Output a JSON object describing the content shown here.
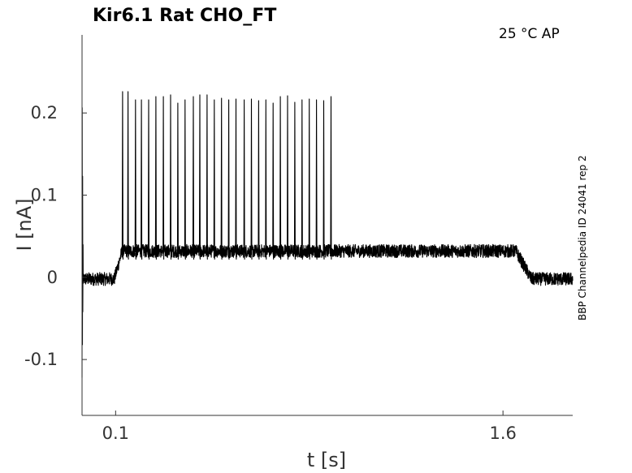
{
  "chart_data": {
    "type": "line",
    "title": "Kir6.1  Rat  CHO_FT",
    "condition": "25 °C  AP",
    "side_label": "BBP Channelpedia ID 24041 rep 2",
    "xlabel": "t [s]",
    "ylabel": "I [nA]",
    "xlim": [
      -0.03,
      1.87
    ],
    "ylim": [
      -0.168,
      0.295
    ],
    "x_ticks": [
      0.1,
      1.6
    ],
    "x_tick_labels": [
      "0.1",
      "1.6"
    ],
    "y_ticks": [
      0.2,
      0.1,
      0,
      -0.1
    ],
    "y_tick_labels": [
      "0.2",
      "0.1",
      "0",
      "-0.1"
    ],
    "grid": false,
    "series": [
      {
        "color": "#000000",
        "baseline_level": -0.002,
        "step_on_time": 0.105,
        "step_off_time": 1.65,
        "plateau_level": 0.032,
        "noise_amplitude": 0.008,
        "spike_times": [
          0.127,
          0.148,
          0.177,
          0.2,
          0.228,
          0.256,
          0.285,
          0.313,
          0.341,
          0.369,
          0.401,
          0.426,
          0.454,
          0.482,
          0.51,
          0.538,
          0.566,
          0.598,
          0.626,
          0.654,
          0.682,
          0.71,
          0.738,
          0.766,
          0.794,
          0.822,
          0.85,
          0.878,
          0.906,
          0.934
        ],
        "spike_peaks": [
          0.226,
          0.226,
          0.216,
          0.216,
          0.216,
          0.22,
          0.22,
          0.222,
          0.212,
          0.216,
          0.22,
          0.222,
          0.222,
          0.216,
          0.218,
          0.216,
          0.217,
          0.216,
          0.217,
          0.215,
          0.216,
          0.212,
          0.22,
          0.221,
          0.213,
          0.216,
          0.217,
          0.216,
          0.215,
          0.22
        ]
      }
    ]
  }
}
